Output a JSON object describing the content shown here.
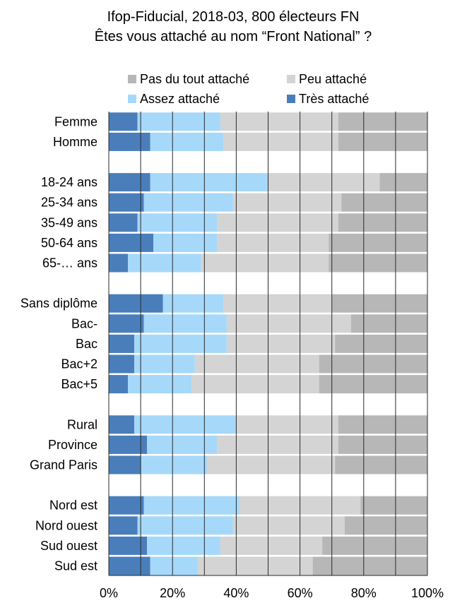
{
  "chart_data": {
    "type": "bar",
    "orientation": "horizontal",
    "stacked": true,
    "title": "Ifop-Fiducial, 2018-03, 800 électeurs FN",
    "subtitle": "Êtes vous attaché au nom “Front National” ?",
    "legend_position": "top",
    "legend": [
      "Pas du tout attaché",
      "Peu attaché",
      "Assez attaché",
      "Très attaché"
    ],
    "xlim": [
      0,
      100
    ],
    "x_ticks": [
      "0%",
      "20%",
      "40%",
      "60%",
      "80%",
      "100%"
    ],
    "grid": true,
    "groups": [
      [
        "Femme",
        "Homme"
      ],
      [
        "18-24 ans",
        "25-34 ans",
        "35-49 ans",
        "50-64 ans",
        "65-… ans"
      ],
      [
        "Sans diplôme",
        "Bac-",
        "Bac",
        "Bac+2",
        "Bac+5"
      ],
      [
        "Rural",
        "Province",
        "Grand Paris"
      ],
      [
        "Nord est",
        "Nord ouest",
        "Sud ouest",
        "Sud est"
      ]
    ],
    "series": [
      {
        "name": "Très attaché",
        "color": "#4a7ebb",
        "values": [
          9,
          13,
          13,
          11,
          9,
          14,
          6,
          17,
          11,
          8,
          8,
          6,
          8,
          12,
          10,
          11,
          9,
          12,
          13
        ]
      },
      {
        "name": "Assez attaché",
        "color": "#a6d8fa",
        "values": [
          26,
          23,
          37,
          28,
          25,
          20,
          23,
          19,
          26,
          29,
          19,
          20,
          32,
          22,
          21,
          30,
          30,
          23,
          15
        ]
      },
      {
        "name": "Peu attaché",
        "color": "#d4d4d4",
        "values": [
          37,
          36,
          35,
          34,
          38,
          35,
          40,
          34,
          39,
          34,
          39,
          40,
          32,
          38,
          40,
          38,
          35,
          32,
          36
        ]
      },
      {
        "name": "Pas du tout attaché",
        "color": "#b7b7b7",
        "values": [
          28,
          28,
          15,
          27,
          28,
          31,
          31,
          30,
          24,
          29,
          34,
          34,
          28,
          28,
          29,
          21,
          26,
          33,
          36
        ]
      }
    ]
  }
}
